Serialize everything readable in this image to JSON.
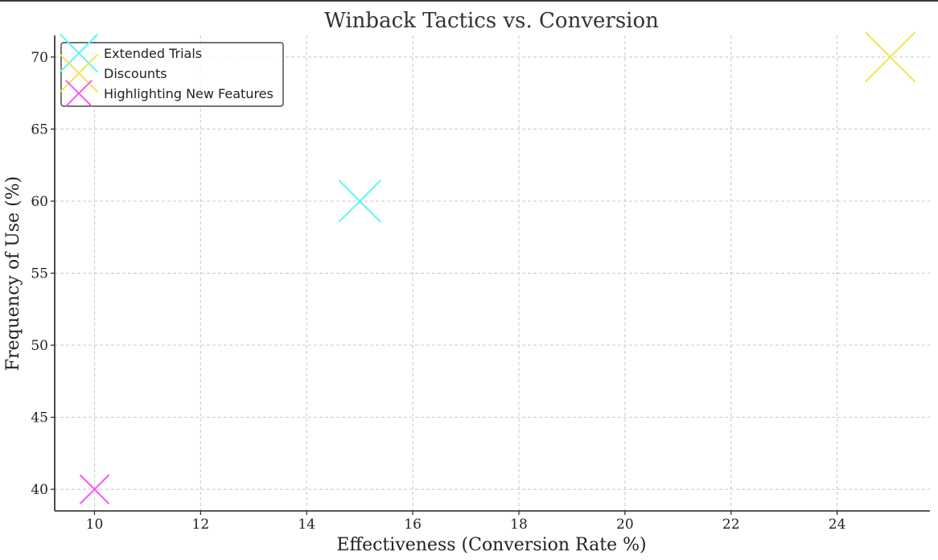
{
  "chart_data": {
    "type": "scatter",
    "title": "Winback Tactics vs. Conversion",
    "xlabel": "Effectiveness (Conversion Rate %)",
    "ylabel": "Frequency of Use (%)",
    "xlim": [
      9.25,
      25.75
    ],
    "ylim": [
      38.5,
      71.5
    ],
    "xticks": [
      "10",
      "12",
      "14",
      "16",
      "18",
      "20",
      "22",
      "24"
    ],
    "yticks": [
      "40",
      "45",
      "50",
      "55",
      "60",
      "65",
      "70"
    ],
    "grid": true,
    "legend_position": "top-left",
    "marker": "x",
    "series": [
      {
        "name": "Extended Trials",
        "color": "#5ff5f5",
        "points": [
          {
            "x": 15,
            "y": 60
          }
        ]
      },
      {
        "name": "Discounts",
        "color": "#f5e25a",
        "points": [
          {
            "x": 25,
            "y": 70
          }
        ]
      },
      {
        "name": "Highlighting New Features",
        "color": "#f55af5",
        "points": [
          {
            "x": 10,
            "y": 40
          }
        ]
      }
    ]
  }
}
